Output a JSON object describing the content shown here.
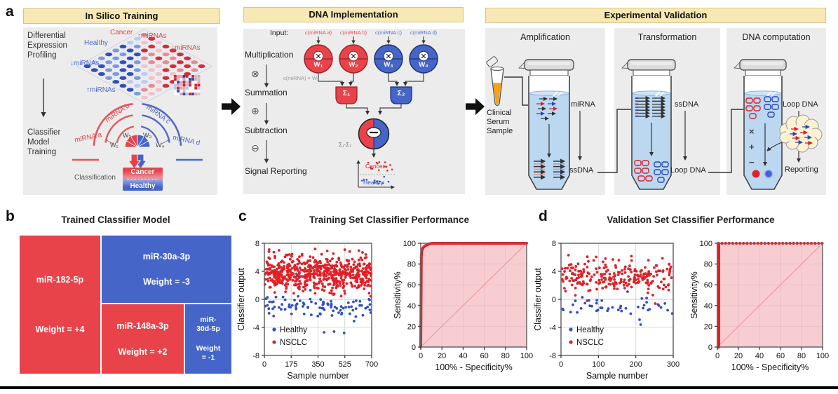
{
  "colors": {
    "red": "#e8424a",
    "blue": "#4565c8",
    "dot_red": "#e02128",
    "dot_blue": "#3050c8",
    "header_bg": "#f7e8b4",
    "header_border": "#d8c383",
    "panel_bg": "#ececec",
    "tube_fill": "#bcd8f0",
    "roc_fill": "#f7cdd1",
    "cloud_fill": "#fbf2d3"
  },
  "panel_a": {
    "label": "a",
    "in_silico": {
      "header": "In Silico Training",
      "profiling_label": "Differential\nExpression\nProfiling",
      "classifier_label": "Classifier\nModel\nTraining",
      "plate_labels": {
        "cancer": "Cancer",
        "healthy": "Healthy",
        "up_mirnas_cancer": "↑miRNAs",
        "down_mirnas_cancer": "↓miRNAs",
        "down_mirnas_healthy": "↓miRNAs",
        "up_mirnas_healthy": "↑miRNAs"
      },
      "arc_labels": {
        "a": "miRNA a",
        "b": "miRNA b",
        "c": "miRNA c",
        "d": "miRNA d"
      },
      "weights": {
        "w1": "W₁",
        "w2": "W₂",
        "w3": "W₃",
        "w4": "W₄"
      },
      "classification_label": "Classification",
      "class_box_top": "Cancer",
      "class_box_bottom": "Healthy"
    },
    "dna_implementation": {
      "header": "DNA Implementation",
      "input_label": "Input:",
      "inputs": [
        "c(miRNA a)",
        "c(miRNA b)",
        "c(miRNA c)",
        "c(miRNA d)"
      ],
      "steps": [
        "Multiplication",
        "Summation",
        "Subtraction",
        "Signal Reporting"
      ],
      "step_icons": [
        "⊗",
        "⊕",
        "⊖"
      ],
      "weights": [
        "W₁",
        "W₂",
        "W₃",
        "W₄"
      ],
      "multiply_caption": "c(miRNA) × Wₓ",
      "sum_nodes": [
        "Σ₁",
        "Σ₂"
      ],
      "subtract_caption": "Σ₁-Σ₂",
      "output_labels": {
        "cancer": "Cancer",
        "healthy": "Healthy"
      }
    },
    "experimental": {
      "header": "Experimental Validation",
      "stages": [
        {
          "title": "Amplification",
          "sample_label": "Clinical\nSerum\nSample",
          "upper_label": "miRNA",
          "lower_label": "ssDNA"
        },
        {
          "title": "Transformation",
          "upper_label": "ssDNA",
          "lower_label": "Loop DNA"
        },
        {
          "title": "DNA computation",
          "upper_label": "Loop DNA",
          "lower_label": "Reporting",
          "operators": [
            "×",
            "+",
            "−"
          ]
        }
      ]
    }
  },
  "panel_b": {
    "label": "b",
    "title": "Trained Classifier Model",
    "blocks": [
      {
        "name": "miR-182-5p",
        "weight": "Weight = +4",
        "color": "#e8424a"
      },
      {
        "name": "miR-30a-3p",
        "weight": "Weight = -3",
        "color": "#4565c8"
      },
      {
        "name": "miR-148a-3p",
        "weight": "Weight = +2",
        "color": "#e8424a"
      },
      {
        "name": "miR-\n30d-5p",
        "weight": "Weight\n= -1",
        "color": "#4565c8"
      }
    ]
  },
  "panel_c": {
    "label": "c",
    "title": "Training Set Classifier Performance"
  },
  "panel_d": {
    "label": "d",
    "title": "Validation Set Classifier Performance"
  },
  "chart_data": [
    {
      "id": "training_scatter",
      "type": "scatter",
      "panel": "c",
      "xlabel": "Sample number",
      "ylabel": "Classifier output",
      "xlim": [
        0,
        700
      ],
      "ylim": [
        -8,
        8
      ],
      "xticks": [
        0,
        175,
        350,
        525,
        700
      ],
      "yticks": [
        8,
        4,
        0,
        -4,
        -8
      ],
      "grid": true,
      "legend": [
        {
          "label": "Healthy",
          "color": "#3050c8"
        },
        {
          "label": "NSCLC",
          "color": "#e02128"
        }
      ],
      "series": [
        {
          "name": "NSCLC",
          "color": "#e02128",
          "n": 580,
          "x_range": [
            3,
            698
          ],
          "y_mean": 3.6,
          "y_sd": 1.25,
          "y_clip": [
            0.4,
            7.2
          ],
          "seed": 11,
          "outliers": [
            [
              30,
              6.8
            ],
            [
              95,
              7.0
            ],
            [
              410,
              6.9
            ],
            [
              640,
              6.7
            ]
          ]
        },
        {
          "name": "Healthy",
          "color": "#3050c8",
          "n": 92,
          "x_range": [
            3,
            698
          ],
          "y_mean": -1.0,
          "y_sd": 0.85,
          "y_clip": [
            -2.6,
            0.5
          ],
          "seed": 7,
          "outliers": [
            [
              390,
              -4.7
            ],
            [
              455,
              -4.6
            ],
            [
              520,
              -4.8
            ],
            [
              585,
              -3.1
            ],
            [
              215,
              3.4
            ],
            [
              300,
              1.3
            ]
          ]
        }
      ]
    },
    {
      "id": "training_roc",
      "type": "roc",
      "panel": "c",
      "xlabel": "100% - Specificity%",
      "ylabel": "Sensitivity%",
      "xlim": [
        0,
        100
      ],
      "ylim": [
        0,
        100
      ],
      "xticks": [
        0,
        20,
        40,
        60,
        80,
        100
      ],
      "yticks": [
        0,
        20,
        40,
        60,
        80,
        100
      ],
      "curve": [
        [
          0,
          0
        ],
        [
          0.5,
          88
        ],
        [
          1,
          92.5
        ],
        [
          1.5,
          94.5
        ],
        [
          2.5,
          96
        ],
        [
          4,
          97.5
        ],
        [
          6,
          98.5
        ],
        [
          8,
          99.5
        ],
        [
          11,
          100
        ],
        [
          100,
          100
        ]
      ],
      "line_color": "#e02128",
      "line_width": 4,
      "fill_color": "#f7cdd1",
      "diagonal": true
    },
    {
      "id": "validation_scatter",
      "type": "scatter",
      "panel": "d",
      "xlabel": "Sample number",
      "ylabel": "Classifier output",
      "xlim": [
        0,
        300
      ],
      "ylim": [
        -8,
        8
      ],
      "xticks": [
        0,
        100,
        200,
        300
      ],
      "yticks": [
        8,
        4,
        0,
        -4,
        -8
      ],
      "grid": true,
      "legend": [
        {
          "label": "Healthy",
          "color": "#3050c8"
        },
        {
          "label": "NSCLC",
          "color": "#e02128"
        }
      ],
      "series": [
        {
          "name": "NSCLC",
          "color": "#e02128",
          "n": 235,
          "x_range": [
            2,
            298
          ],
          "y_mean": 3.4,
          "y_sd": 1.15,
          "y_clip": [
            0.3,
            6.3
          ],
          "seed": 21,
          "outliers": [
            [
              20,
              6.3
            ],
            [
              70,
              -0.2
            ],
            [
              252,
              -0.6
            ],
            [
              262,
              -0.9
            ]
          ]
        },
        {
          "name": "Healthy",
          "color": "#3050c8",
          "n": 40,
          "x_range": [
            2,
            298
          ],
          "y_mean": -1.2,
          "y_sd": 0.8,
          "y_clip": [
            -2.4,
            0.4
          ],
          "seed": 5,
          "outliers": [
            [
              178,
              1.1
            ],
            [
              210,
              -2.9
            ],
            [
              213,
              -3.6
            ],
            [
              57,
              0.3
            ]
          ]
        }
      ]
    },
    {
      "id": "validation_roc",
      "type": "roc",
      "panel": "d",
      "xlabel": "100% - Specificity%",
      "ylabel": "Sensitivity%",
      "xlim": [
        0,
        100
      ],
      "ylim": [
        0,
        100
      ],
      "xticks": [
        0,
        20,
        40,
        60,
        80,
        100
      ],
      "yticks": [
        0,
        20,
        40,
        60,
        80,
        100
      ],
      "curve": [
        [
          1,
          0
        ],
        [
          1,
          99
        ]
      ],
      "top_markers": {
        "y": 100,
        "x_start": 1,
        "x_end": 100,
        "step": 3.4,
        "radius": 2.1
      },
      "line_color": "#e02128",
      "line_width": 5,
      "fill_color": "#f7cdd1",
      "diagonal": true
    }
  ]
}
